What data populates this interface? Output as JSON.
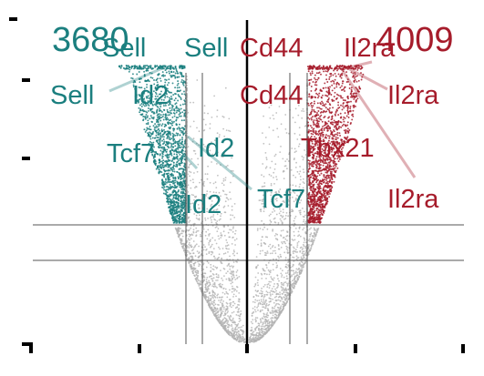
{
  "chart_data": {
    "type": "scatter",
    "title": "",
    "xlabel": "",
    "ylabel": "",
    "counts": {
      "down": {
        "value": "3680",
        "color": "#1b7f7f"
      },
      "up": {
        "value": "4009",
        "color": "#a61c2b"
      }
    },
    "series": [
      {
        "role": "down",
        "color": "#1b7f7f"
      },
      {
        "role": "up",
        "color": "#a61c2b"
      },
      {
        "role": "ns",
        "color": "#b3b3b3"
      }
    ],
    "annotations": [
      {
        "text": "Sell",
        "group": "down"
      },
      {
        "text": "Sell",
        "group": "down"
      },
      {
        "text": "Sell",
        "group": "down"
      },
      {
        "text": "Id2",
        "group": "down"
      },
      {
        "text": "Tcf7",
        "group": "down"
      },
      {
        "text": "Id2",
        "group": "down"
      },
      {
        "text": "Tcf7",
        "group": "down"
      },
      {
        "text": "Id2",
        "group": "down"
      },
      {
        "text": "Cd44",
        "group": "up"
      },
      {
        "text": "Cd44",
        "group": "up"
      },
      {
        "text": "Il2ra",
        "group": "up"
      },
      {
        "text": "Il2ra",
        "group": "up"
      },
      {
        "text": "Il2ra",
        "group": "up"
      },
      {
        "text": "Tbx21",
        "group": "up"
      }
    ]
  }
}
